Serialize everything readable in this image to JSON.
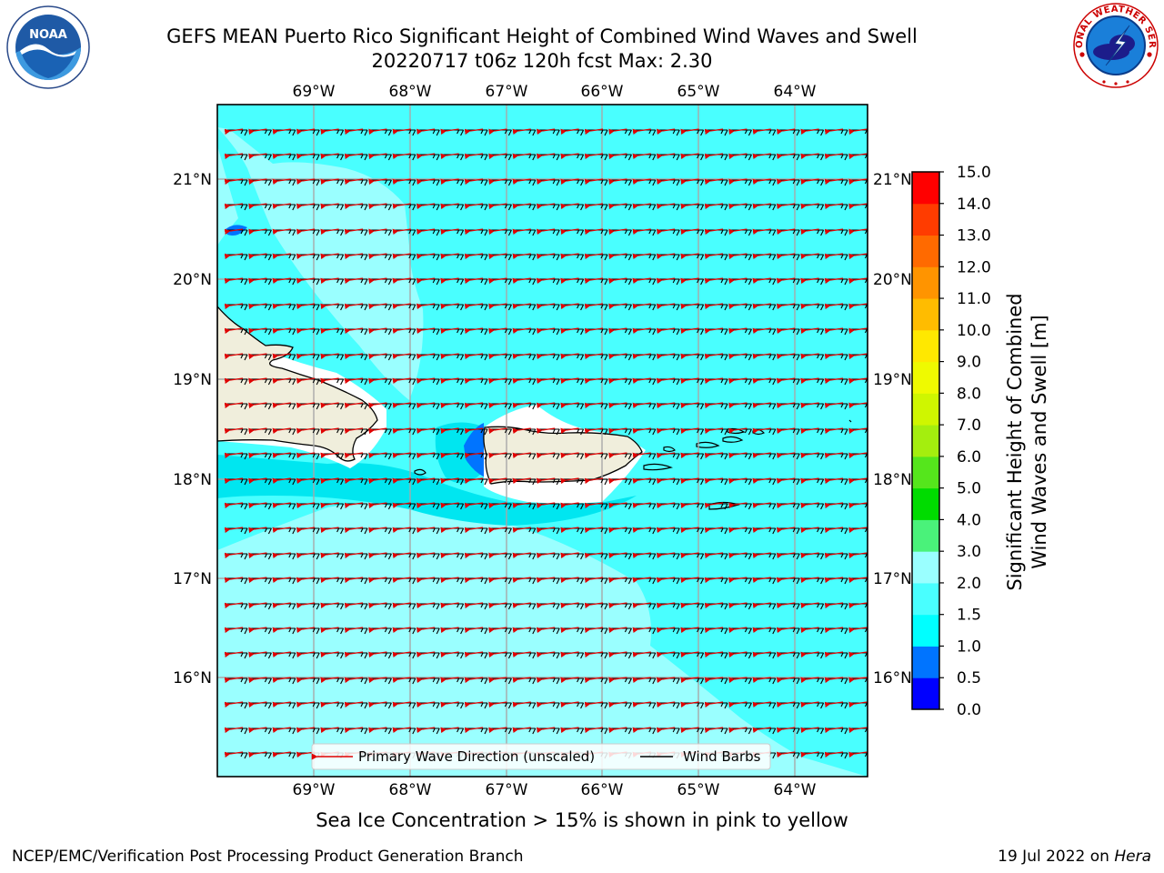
{
  "header": {
    "title_line1": "GEFS MEAN Puerto Rico Significant Height of Combined Wind Waves and Swell",
    "title_line2": "20220717 t06z 120h fcst   Max: 2.30"
  },
  "logos": {
    "left": "noaa-logo",
    "left_text": "NOAA",
    "left_ring_text": "NATIONAL OCEANIC AND ATMOSPHERIC ADMINISTRATION · U.S. DEPARTMENT OF COMMERCE",
    "right": "nws-logo",
    "right_ring_text": "NATIONAL WEATHER SERVICE"
  },
  "map": {
    "lon_labels": [
      "69°W",
      "68°W",
      "67°W",
      "66°W",
      "65°W",
      "64°W"
    ],
    "lat_labels": [
      "21°N",
      "20°N",
      "19°N",
      "18°N",
      "17°N",
      "16°N"
    ],
    "colors": {
      "water_main": "#49FFFF",
      "water_light": "#9AFFFF",
      "water_deep": "#00E6F0",
      "land": "#F0EEDC",
      "coast": "#000000",
      "grid": "#A8A8A8"
    },
    "legend": {
      "item1": "Primary Wave Direction (unscaled)",
      "item2": "Wind Barbs"
    }
  },
  "colorbar": {
    "title_line1": "Significant Height of Combined",
    "title_line2": "Wind Waves and Swell [m]",
    "ticks": [
      "0.0",
      "0.5",
      "1.0",
      "1.5",
      "2.0",
      "3.0",
      "4.0",
      "5.0",
      "6.0",
      "7.0",
      "8.0",
      "9.0",
      "10.0",
      "11.0",
      "12.0",
      "13.0",
      "14.0",
      "15.0"
    ],
    "colors": [
      "#0000FF",
      "#0074FF",
      "#00FFFF",
      "#49FFFF",
      "#9AFFFF",
      "#4AF27A",
      "#00DC00",
      "#55E61C",
      "#A4EE0E",
      "#CFF600",
      "#EFFA00",
      "#FFE800",
      "#FFBC00",
      "#FF9400",
      "#FF6A00",
      "#FF3C00",
      "#FF0000"
    ]
  },
  "footer": {
    "note": "Sea Ice Concentration > 15% is shown in pink to yellow",
    "left": "NCEP/EMC/Verification Post Processing Product Generation Branch",
    "right_date": "19 Jul 2022 on ",
    "right_host": "Hera"
  }
}
